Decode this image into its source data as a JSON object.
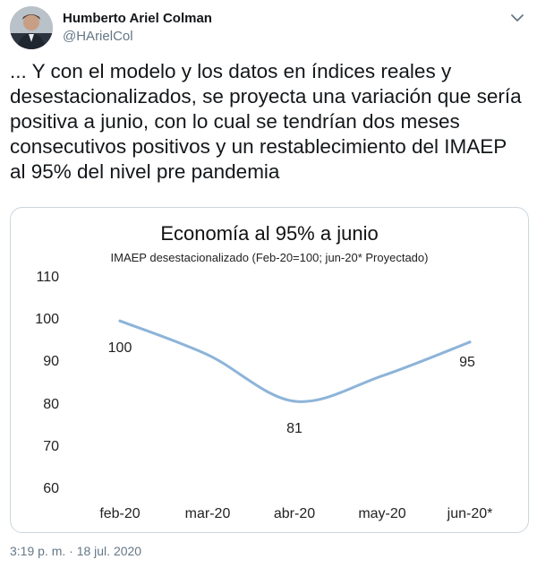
{
  "tweet": {
    "author_name": "Humberto Ariel Colman",
    "author_handle": "@HArielCol",
    "text": "... Y con el modelo y los datos en índices reales y desestacionalizados, se proyecta una variación que sería positiva a junio, con lo cual se tendrían dos meses consecutivos positivos y un restablecimiento del IMAEP al 95% del nivel pre pandemia",
    "timestamp": "3:19 p. m. · 18 jul. 2020"
  },
  "icons": {
    "menu": "chevron-down-icon",
    "avatar": "avatar"
  },
  "colors": {
    "line": "#8db4d9",
    "text_secondary": "#657786",
    "card_border": "#ccd6dd"
  },
  "chart_data": {
    "type": "line",
    "title": "Economía al 95% a junio",
    "subtitle": "IMAEP desestacionalizado (Feb-20=100; jun-20* Proyectado)",
    "categories": [
      "feb-20",
      "mar-20",
      "abr-20",
      "may-20",
      "jun-20*"
    ],
    "series": [
      {
        "values": [
          100,
          92,
          81,
          87,
          95
        ]
      }
    ],
    "data_labels": [
      "100",
      "",
      "81",
      "",
      "95"
    ],
    "yticks": [
      "110",
      "100",
      "90",
      "80",
      "70",
      "60"
    ],
    "ylim": [
      60,
      110
    ],
    "grid": false,
    "legend": "none"
  }
}
